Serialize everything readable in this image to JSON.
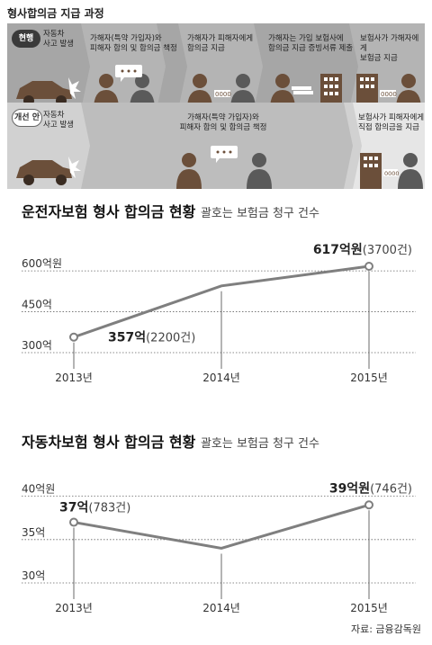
{
  "title": "형사합의금 지급 과정",
  "process": {
    "current": {
      "badge": "현행",
      "steps": [
        {
          "lines": [
            "자동차",
            "사고 발생"
          ]
        },
        {
          "lines": [
            "가해자(특약 가입자)와",
            "피해자 합의 및 합의금 책정"
          ]
        },
        {
          "lines": [
            "가해자가 피해자에게",
            "합의금 지급"
          ]
        },
        {
          "lines": [
            "가해자는 가입 보험사에",
            "합의금 지급 증빙서류 제출"
          ]
        },
        {
          "lines": [
            "보험사가 가해자에게",
            "보험금 지급"
          ]
        }
      ]
    },
    "improved": {
      "badge": "개선 안",
      "steps": [
        {
          "lines": [
            "자동차",
            "사고 발생"
          ]
        },
        {
          "lines": [
            "가해자(특약 가입자)와",
            "피해자 합의 및 합의금 책정"
          ]
        },
        {
          "lines": [
            "보험사가 피해자에게",
            "직접 합의금을 지급"
          ]
        }
      ]
    }
  },
  "source": "자료: 금융감독원",
  "chart_data": [
    {
      "type": "line",
      "title": "운전자보험 형사 합의금 현황",
      "subtitle": "괄호는 보험금 청구 건수",
      "x": [
        "2013년",
        "2014년",
        "2015년"
      ],
      "values": [
        357,
        545,
        617
      ],
      "ylim": [
        300,
        650
      ],
      "yticks": [
        {
          "value": 300,
          "label": "300억"
        },
        {
          "value": 450,
          "label": "450억"
        },
        {
          "value": 600,
          "label": "600억원"
        }
      ],
      "annotations": [
        {
          "index": 0,
          "bold": "357억",
          "normal": "(2200건)"
        },
        {
          "index": 2,
          "bold": "617억원",
          "normal": "(3700건)"
        }
      ],
      "grid": true
    },
    {
      "type": "line",
      "title": "자동차보험 형사 합의금 현황",
      "subtitle": "괄호는 보험금 청구 건수",
      "x": [
        "2013년",
        "2014년",
        "2015년"
      ],
      "values": [
        37,
        34,
        39
      ],
      "ylim": [
        30,
        41
      ],
      "yticks": [
        {
          "value": 30,
          "label": "30억"
        },
        {
          "value": 35,
          "label": "35억"
        },
        {
          "value": 40,
          "label": "40억원"
        }
      ],
      "annotations": [
        {
          "index": 0,
          "bold": "37억",
          "normal": "(783건)"
        },
        {
          "index": 2,
          "bold": "39억원",
          "normal": "(746건)"
        }
      ],
      "grid": true
    }
  ],
  "colors": {
    "row_current": "#a6a6a6",
    "row_improved": "#d1d1d1",
    "chevron": "#c6c6c6",
    "chevron_dark": "#8f8f8f",
    "line": "#7f7f7f",
    "marker_fill": "#ffffff",
    "grid": "#666666",
    "illustration": "#6b4f3a",
    "illustration_gray": "#5a5a5a"
  }
}
